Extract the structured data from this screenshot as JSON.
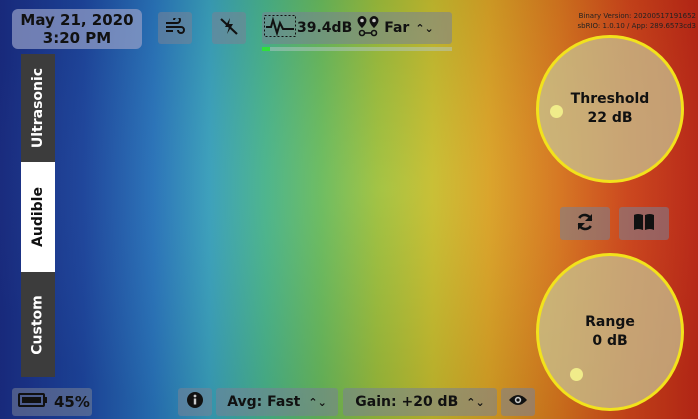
{
  "status": {
    "date": "May 21, 2020",
    "time": "3:20 PM",
    "binary_version": "Binary Version: 20200517191652",
    "sbrio_version": "sbRIO: 1.0.10 / App: 289.6573cd3"
  },
  "sensor": {
    "level": "39.4dB",
    "distance": "Far",
    "progress_fraction": 0.04
  },
  "tabs": [
    {
      "label": "Ultrasonic",
      "active": false
    },
    {
      "label": "Audible",
      "active": true
    },
    {
      "label": "Custom",
      "active": false
    }
  ],
  "threshold": {
    "title": "Threshold",
    "value": "22 dB"
  },
  "range": {
    "title": "Range",
    "value": "0 dB"
  },
  "bottom": {
    "battery": "45%",
    "avg": "Avg: Fast",
    "gain": "Gain: +20 dB"
  },
  "icons": [
    "wind-icon",
    "strike-off-icon",
    "waveform-icon",
    "pin-link-icon",
    "refresh-icon",
    "book-icon",
    "battery-icon",
    "info-icon",
    "eye-icon"
  ],
  "colors": {
    "accent_yellow": "#f2e21c",
    "progress_green": "#30e03a",
    "tab_dark": "#3c3c3c"
  }
}
